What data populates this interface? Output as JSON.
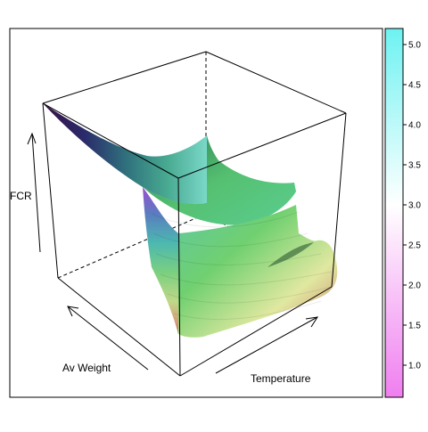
{
  "chart_data": {
    "type": "surface3d",
    "xlabel": "Av Weight",
    "ylabel": "Temperature",
    "zlabel": "FCR",
    "colorkey": {
      "ticks": [
        "1.0",
        "1.5",
        "2.0",
        "2.5",
        "3.0",
        "3.5",
        "4.0",
        "4.5",
        "5.0"
      ],
      "tick_values": [
        1.0,
        1.5,
        2.0,
        2.5,
        3.0,
        3.5,
        4.0,
        4.5,
        5.0
      ],
      "range": [
        0.6,
        5.2
      ],
      "colors": {
        "low": "#f07ef0",
        "mid": "#ffffff",
        "high": "#6ef2f2"
      }
    },
    "surface_colors": [
      "#3a1a5c",
      "#3b5a8a",
      "#2f8f8a",
      "#58c8a0",
      "#6fd080",
      "#a8d880",
      "#d8e090",
      "#d89a78",
      "#c87060"
    ]
  }
}
